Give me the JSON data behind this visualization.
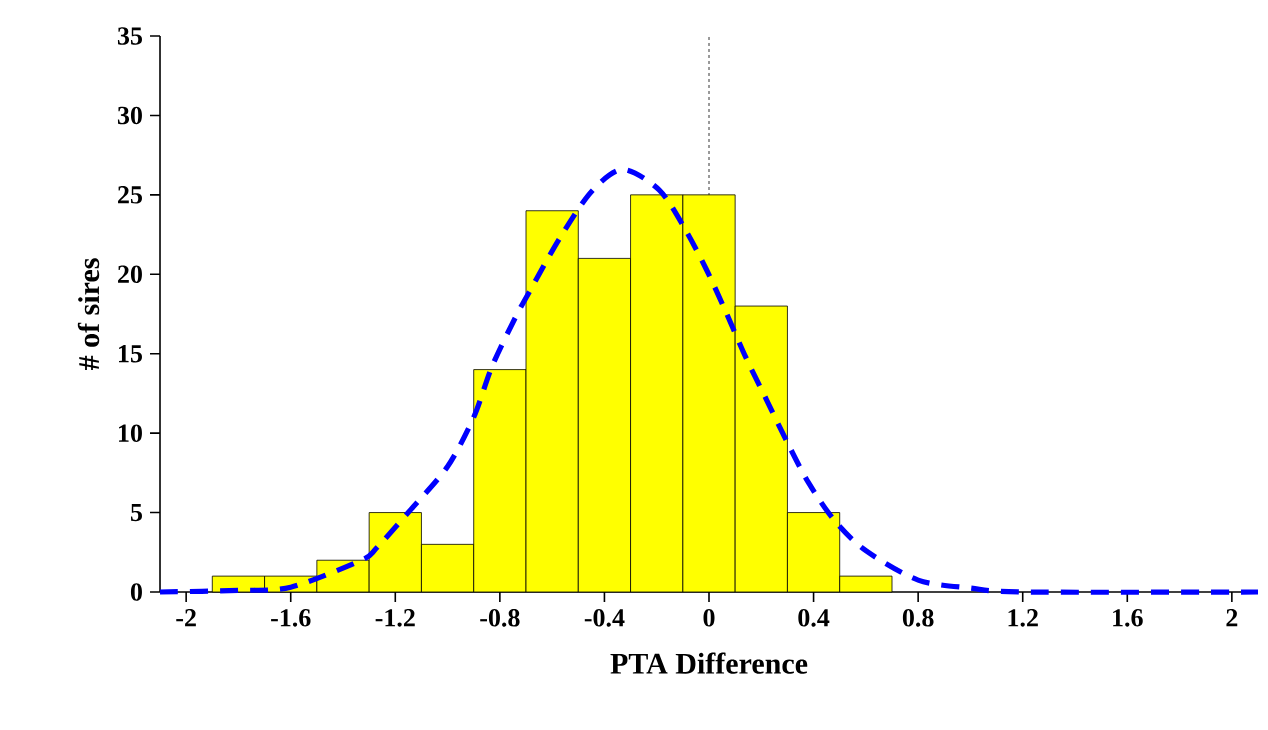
{
  "chart_data": {
    "type": "histogram",
    "xlabel": "PTA Difference",
    "ylabel": "# of sires",
    "xlim": [
      -2.1,
      2.1
    ],
    "ylim": [
      0,
      35
    ],
    "xticks": [
      -2,
      -1.6,
      -1.2,
      -0.8,
      -0.4,
      0,
      0.4,
      0.8,
      1.2,
      1.6,
      2
    ],
    "yticks": [
      0,
      5,
      10,
      15,
      20,
      25,
      30,
      35
    ],
    "grid": false,
    "ref_lines": [
      {
        "axis": "x",
        "value": 0,
        "color": "#000000",
        "line_style": "dotted"
      }
    ],
    "series": [
      {
        "color": "#ffff00",
        "bins": [
          -1.9,
          -1.7,
          -1.5,
          -1.3,
          -1.1,
          -0.9,
          -0.7,
          -0.5,
          -0.3,
          -0.1,
          0.1,
          0.3,
          0.5,
          0.7
        ],
        "values": [
          1,
          1,
          2,
          5,
          3,
          14,
          24,
          21,
          25,
          25,
          18,
          5,
          1
        ]
      },
      {
        "type": "line",
        "color": "#0000ff",
        "line_style": "dashed",
        "x": [
          -2.1,
          -1.8,
          -1.6,
          -1.33,
          -1.27,
          -1.14,
          -1.0,
          -0.9,
          -0.83,
          -0.74,
          -0.67,
          -0.57,
          -0.45,
          -0.33,
          -0.19,
          -0.09,
          -0.01,
          0.06,
          0.14,
          0.22,
          0.3,
          0.38,
          0.48,
          0.6,
          0.8,
          1.0,
          1.2,
          2.1
        ],
        "values": [
          0,
          0.1,
          0.3,
          2.0,
          2.8,
          5.2,
          7.9,
          11.0,
          14.2,
          17.3,
          19.4,
          22.3,
          25.2,
          26.6,
          25.3,
          22.8,
          20.3,
          17.8,
          14.8,
          12.1,
          9.4,
          6.9,
          4.5,
          2.6,
          0.75,
          0.25,
          0,
          0
        ]
      }
    ]
  }
}
